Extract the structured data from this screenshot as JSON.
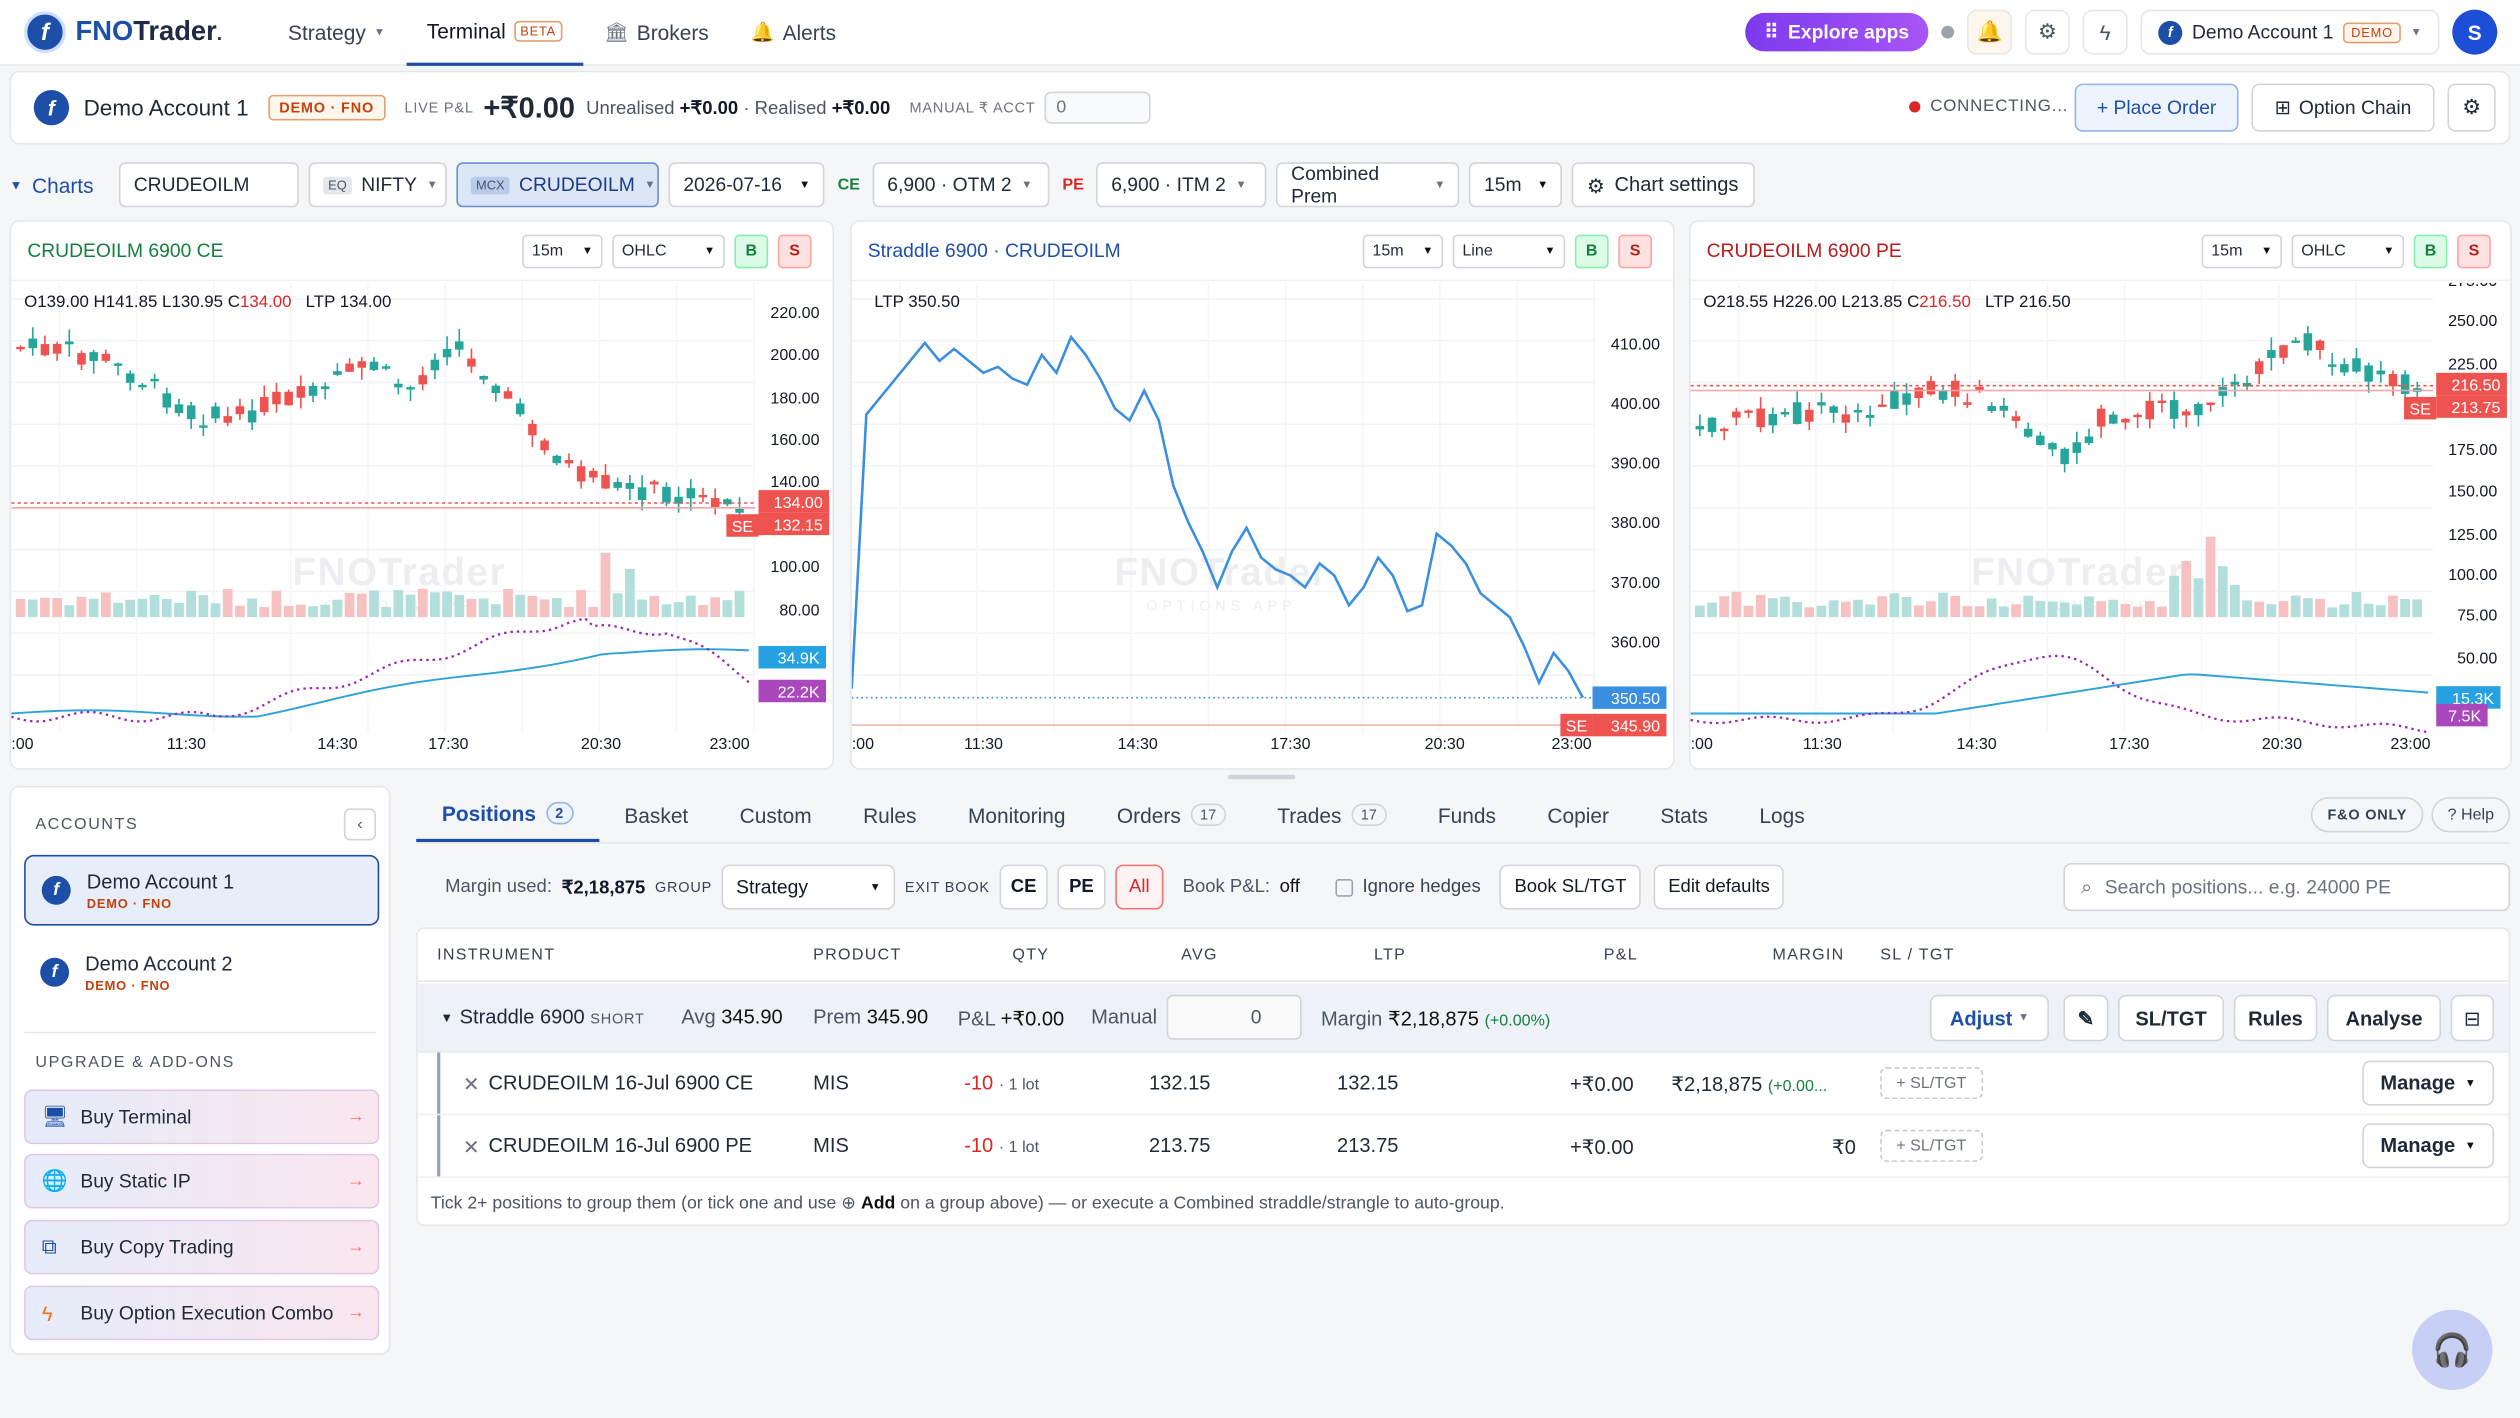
{
  "app": {
    "logo_letter": "f",
    "name_part1": "FNO",
    "name_part2": "Trader",
    "trademark": "."
  },
  "nav": [
    {
      "label": "Strategy"
    },
    {
      "label": "Terminal",
      "badge": "BETA"
    },
    {
      "label": "Brokers"
    },
    {
      "label": "Alerts"
    }
  ],
  "topright": {
    "explore": "Explore apps",
    "account": "Demo Account 1",
    "account_badge": "DEMO",
    "avatar": "S"
  },
  "account": {
    "name": "Demo Account 1",
    "badge": "DEMO · FNO",
    "live_pnl_label": "LIVE P&L",
    "live_pnl": "+₹0.00",
    "unrealised_label": "Unrealised",
    "unrealised": "+₹0.00",
    "realised_label": "Realised",
    "realised": "+₹0.00",
    "manual_label": "MANUAL ₹ ACCT",
    "manual_value": "0",
    "status": "CONNECTING...",
    "place_order": "+ Place Order",
    "option_chain": "Option Chain"
  },
  "chartsbar": {
    "title": "Charts",
    "symbol_input": "CRUDEOILM",
    "eq_tag": "EQ",
    "eq_symbol": "NIFTY",
    "mcx_tag": "MCX",
    "mcx_symbol": "CRUDEOILM",
    "expiry": "2026-07-16",
    "ce_label": "CE",
    "ce_strike": "6,900 · OTM 2",
    "pe_label": "PE",
    "pe_strike": "6,900 · ITM 2",
    "combined": "Combined Prem",
    "interval": "15m",
    "settings": "Chart settings"
  },
  "charts": [
    {
      "title": "CRUDEOILM 6900 CE",
      "interval": "15m",
      "type": "OHLC",
      "buy": "B",
      "sell": "S",
      "ohlc": {
        "o": "139.00",
        "h": "141.85",
        "l": "130.95",
        "c": "134.00",
        "ltp": "134.00"
      },
      "y_ticks": [
        "220.00",
        "200.00",
        "180.00",
        "160.00",
        "140.00",
        "100.00",
        "80.00"
      ],
      "tag_ltp": "134.00",
      "tag_se_label": "SE",
      "tag_se": "132.15",
      "tag_vol1": "34.9K",
      "tag_vol2": "22.2K",
      "x_ticks": [
        ":00",
        "11:30",
        "14:30",
        "17:30",
        "20:30",
        "23:00"
      ]
    },
    {
      "title": "Straddle 6900 · CRUDEOILM",
      "interval": "15m",
      "type": "Line",
      "buy": "B",
      "sell": "S",
      "ltp_label": "LTP",
      "ltp": "350.50",
      "y_ticks": [
        "410.00",
        "400.00",
        "390.00",
        "380.00",
        "370.00",
        "360.00"
      ],
      "tag_ltp": "350.50",
      "tag_se_label": "SE",
      "tag_se": "345.90",
      "x_ticks": [
        ":00",
        "11:30",
        "14:30",
        "17:30",
        "20:30",
        "23:00"
      ],
      "series": [
        352,
        398,
        401,
        404,
        407,
        410,
        407,
        409,
        407,
        405,
        406,
        404,
        403,
        408,
        405,
        411,
        408,
        404,
        399,
        397,
        402,
        397,
        386,
        380,
        375,
        369,
        375,
        379,
        374,
        372,
        371,
        369,
        373,
        371,
        366,
        369,
        374,
        371,
        365,
        366,
        378,
        376,
        373,
        368,
        366,
        364,
        359,
        353,
        358,
        355,
        350.5
      ]
    },
    {
      "title": "CRUDEOILM 6900 PE",
      "interval": "15m",
      "type": "OHLC",
      "buy": "B",
      "sell": "S",
      "ohlc": {
        "o": "218.55",
        "h": "226.00",
        "l": "213.85",
        "c": "216.50",
        "ltp": "216.50"
      },
      "y_ticks": [
        "275.00",
        "250.00",
        "225.00",
        "200.00",
        "175.00",
        "150.00",
        "125.00",
        "100.00",
        "75.00",
        "50.00",
        "25.00"
      ],
      "tag_ltp": "216.50",
      "tag_se_label": "SE",
      "tag_se": "213.75",
      "tag_vol1": "15.3K",
      "tag_vol2": "7.5K",
      "x_ticks": [
        ":00",
        "11:30",
        "14:30",
        "17:30",
        "20:30",
        "23:00"
      ]
    }
  ],
  "watermark": {
    "main": "FNOTrader",
    "sub": "OPTIONS APP"
  },
  "accounts": {
    "header": "ACCOUNTS",
    "items": [
      {
        "name": "Demo Account 1",
        "badge": "DEMO · FNO"
      },
      {
        "name": "Demo Account 2",
        "badge": "DEMO · FNO"
      }
    ],
    "upgrade_header": "UPGRADE & ADD-ONS",
    "addons": [
      {
        "label": "Buy Terminal"
      },
      {
        "label": "Buy Static IP"
      },
      {
        "label": "Buy Copy Trading"
      },
      {
        "label": "Buy Option Execution Combo"
      }
    ]
  },
  "tabs": [
    {
      "label": "Positions",
      "count": "2"
    },
    {
      "label": "Basket"
    },
    {
      "label": "Custom"
    },
    {
      "label": "Rules"
    },
    {
      "label": "Monitoring"
    },
    {
      "label": "Orders",
      "count": "17"
    },
    {
      "label": "Trades",
      "count": "17"
    },
    {
      "label": "Funds"
    },
    {
      "label": "Copier"
    },
    {
      "label": "Stats"
    },
    {
      "label": "Logs"
    }
  ],
  "tabs_right": {
    "fo_only": "F&O ONLY",
    "help": "? Help"
  },
  "toolbar": {
    "margin_label": "Margin used:",
    "margin": "₹2,18,875",
    "group_label": "GROUP",
    "group_value": "Strategy",
    "exit_label": "EXIT BOOK",
    "ce": "CE",
    "pe": "PE",
    "all": "All",
    "book_pnl_label": "Book P&L:",
    "book_pnl": "off",
    "ignore": "Ignore hedges",
    "book_sltgt": "Book SL/TGT",
    "edit_defaults": "Edit defaults",
    "search_placeholder": "Search positions... e.g. 24000 PE"
  },
  "table": {
    "headers": [
      "INSTRUMENT",
      "PRODUCT",
      "QTY",
      "AVG",
      "LTP",
      "P&L",
      "MARGIN",
      "SL / TGT"
    ],
    "group": {
      "name": "Straddle 6900",
      "tag": "SHORT",
      "avg_label": "Avg",
      "avg": "345.90",
      "prem_label": "Prem",
      "prem": "345.90",
      "pnl_label": "P&L",
      "pnl": "+₹0.00",
      "manual_label": "Manual",
      "manual": "0",
      "margin_label": "Margin",
      "margin": "₹2,18,875",
      "margin_pct": "(+0.00%)",
      "adjust": "Adjust",
      "sltgt": "SL/TGT",
      "rules": "Rules",
      "analyse": "Analyse"
    },
    "rows": [
      {
        "instrument": "CRUDEOILM 16-Jul 6900 CE",
        "product": "MIS",
        "qty": "-10",
        "lots": "1 lot",
        "avg": "132.15",
        "ltp": "132.15",
        "pnl": "+₹0.00",
        "margin": "₹2,18,875",
        "margin_pct": "(+0.00...",
        "sltgt": "+ SL/TGT",
        "manage": "Manage"
      },
      {
        "instrument": "CRUDEOILM 16-Jul 6900 PE",
        "product": "MIS",
        "qty": "-10",
        "lots": "1 lot",
        "avg": "213.75",
        "ltp": "213.75",
        "pnl": "+₹0.00",
        "margin": "₹0",
        "margin_pct": "",
        "sltgt": "+ SL/TGT",
        "manage": "Manage"
      }
    ],
    "footnote_1": "Tick 2+ positions to group them (or tick one and use",
    "footnote_add": "Add",
    "footnote_2": "on a group above) — or execute a Combined straddle/strangle to auto-group."
  }
}
